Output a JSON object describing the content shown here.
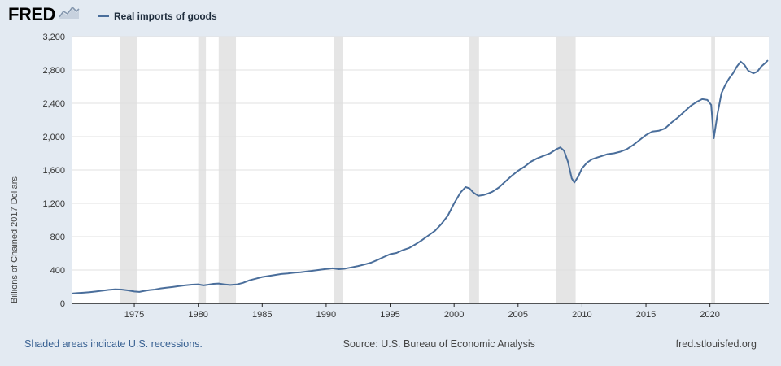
{
  "header": {
    "logo": "FRED",
    "legend_label": "Real imports of goods"
  },
  "colors": {
    "page_bg": "#e3eaf2",
    "plot_bg": "#ffffff",
    "line": "#4a6e9b",
    "recession_band": "#e5e5e5",
    "gridline": "#e0e0e0",
    "axis": "#222222",
    "tick_text": "#333333",
    "footer_link": "#3a6293"
  },
  "footer": {
    "recession_note": "Shaded areas indicate U.S. recessions.",
    "source": "Source: U.S. Bureau of Economic Analysis",
    "site": "fred.stlouisfed.org"
  },
  "chart_data": {
    "type": "line",
    "title": "Real imports of goods",
    "xlabel": "",
    "ylabel": "Billions of Chained 2017 Dollars",
    "ylim": [
      0,
      3200
    ],
    "xlim": [
      1970.1,
      2024.6
    ],
    "grid": true,
    "legend_position": "top-left",
    "yticks": [
      0,
      400,
      800,
      1200,
      1600,
      2000,
      2400,
      2800,
      3200
    ],
    "ytick_labels": [
      "0",
      "400",
      "800",
      "1,200",
      "1,600",
      "2,000",
      "2,400",
      "2,800",
      "3,200"
    ],
    "xticks": [
      1975,
      1980,
      1985,
      1990,
      1995,
      2000,
      2005,
      2010,
      2015,
      2020
    ],
    "xtick_labels": [
      "1975",
      "1980",
      "1985",
      "1990",
      "1995",
      "2000",
      "2005",
      "2010",
      "2015",
      "2020"
    ],
    "recessions": [
      [
        1973.9,
        1975.25
      ],
      [
        1980.0,
        1980.6
      ],
      [
        1981.6,
        1982.95
      ],
      [
        1990.6,
        1991.3
      ],
      [
        2001.2,
        2001.95
      ],
      [
        2007.95,
        2009.5
      ],
      [
        2020.1,
        2020.4
      ]
    ],
    "series": [
      {
        "name": "Real imports of goods",
        "points": [
          [
            1970.2,
            120
          ],
          [
            1970.6,
            124
          ],
          [
            1971.0,
            128
          ],
          [
            1971.5,
            134
          ],
          [
            1972.0,
            142
          ],
          [
            1972.5,
            152
          ],
          [
            1973.0,
            162
          ],
          [
            1973.5,
            168
          ],
          [
            1974.0,
            166
          ],
          [
            1974.5,
            156
          ],
          [
            1975.0,
            142
          ],
          [
            1975.4,
            138
          ],
          [
            1975.8,
            150
          ],
          [
            1976.2,
            160
          ],
          [
            1976.6,
            166
          ],
          [
            1977.0,
            178
          ],
          [
            1977.5,
            188
          ],
          [
            1978.0,
            196
          ],
          [
            1978.5,
            208
          ],
          [
            1979.0,
            218
          ],
          [
            1979.5,
            224
          ],
          [
            1980.0,
            228
          ],
          [
            1980.4,
            216
          ],
          [
            1980.8,
            224
          ],
          [
            1981.2,
            234
          ],
          [
            1981.6,
            238
          ],
          [
            1982.0,
            228
          ],
          [
            1982.5,
            220
          ],
          [
            1983.0,
            226
          ],
          [
            1983.5,
            246
          ],
          [
            1984.0,
            276
          ],
          [
            1984.5,
            296
          ],
          [
            1985.0,
            316
          ],
          [
            1985.5,
            328
          ],
          [
            1986.0,
            340
          ],
          [
            1986.5,
            352
          ],
          [
            1987.0,
            358
          ],
          [
            1987.5,
            368
          ],
          [
            1988.0,
            374
          ],
          [
            1988.5,
            382
          ],
          [
            1989.0,
            392
          ],
          [
            1989.5,
            402
          ],
          [
            1990.0,
            412
          ],
          [
            1990.5,
            420
          ],
          [
            1991.0,
            410
          ],
          [
            1991.5,
            418
          ],
          [
            1992.0,
            432
          ],
          [
            1992.5,
            448
          ],
          [
            1993.0,
            466
          ],
          [
            1993.5,
            488
          ],
          [
            1994.0,
            520
          ],
          [
            1994.5,
            556
          ],
          [
            1995.0,
            590
          ],
          [
            1995.5,
            605
          ],
          [
            1996.0,
            640
          ],
          [
            1996.5,
            665
          ],
          [
            1997.0,
            710
          ],
          [
            1997.5,
            760
          ],
          [
            1998.0,
            815
          ],
          [
            1998.5,
            870
          ],
          [
            1999.0,
            950
          ],
          [
            1999.5,
            1050
          ],
          [
            2000.0,
            1200
          ],
          [
            2000.5,
            1330
          ],
          [
            2000.9,
            1395
          ],
          [
            2001.2,
            1380
          ],
          [
            2001.5,
            1330
          ],
          [
            2001.9,
            1290
          ],
          [
            2002.3,
            1300
          ],
          [
            2002.7,
            1320
          ],
          [
            2003.0,
            1340
          ],
          [
            2003.5,
            1390
          ],
          [
            2004.0,
            1460
          ],
          [
            2004.5,
            1530
          ],
          [
            2005.0,
            1590
          ],
          [
            2005.5,
            1640
          ],
          [
            2006.0,
            1700
          ],
          [
            2006.5,
            1740
          ],
          [
            2007.0,
            1770
          ],
          [
            2007.5,
            1800
          ],
          [
            2008.0,
            1850
          ],
          [
            2008.3,
            1870
          ],
          [
            2008.6,
            1830
          ],
          [
            2008.9,
            1700
          ],
          [
            2009.2,
            1500
          ],
          [
            2009.4,
            1450
          ],
          [
            2009.7,
            1520
          ],
          [
            2010.0,
            1620
          ],
          [
            2010.4,
            1690
          ],
          [
            2010.8,
            1730
          ],
          [
            2011.2,
            1750
          ],
          [
            2011.6,
            1770
          ],
          [
            2012.0,
            1790
          ],
          [
            2012.5,
            1800
          ],
          [
            2013.0,
            1820
          ],
          [
            2013.5,
            1850
          ],
          [
            2014.0,
            1900
          ],
          [
            2014.5,
            1960
          ],
          [
            2015.0,
            2020
          ],
          [
            2015.5,
            2060
          ],
          [
            2016.0,
            2070
          ],
          [
            2016.5,
            2100
          ],
          [
            2017.0,
            2170
          ],
          [
            2017.5,
            2230
          ],
          [
            2018.0,
            2300
          ],
          [
            2018.5,
            2370
          ],
          [
            2019.0,
            2420
          ],
          [
            2019.4,
            2450
          ],
          [
            2019.8,
            2440
          ],
          [
            2020.1,
            2380
          ],
          [
            2020.3,
            1980
          ],
          [
            2020.6,
            2280
          ],
          [
            2020.9,
            2520
          ],
          [
            2021.2,
            2620
          ],
          [
            2021.5,
            2700
          ],
          [
            2021.8,
            2760
          ],
          [
            2022.1,
            2840
          ],
          [
            2022.4,
            2900
          ],
          [
            2022.7,
            2860
          ],
          [
            2023.0,
            2790
          ],
          [
            2023.4,
            2760
          ],
          [
            2023.7,
            2780
          ],
          [
            2024.0,
            2840
          ],
          [
            2024.3,
            2880
          ],
          [
            2024.5,
            2910
          ]
        ]
      }
    ]
  }
}
